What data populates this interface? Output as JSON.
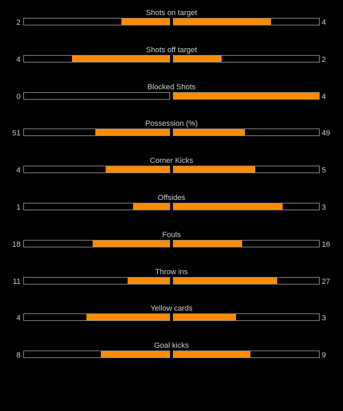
{
  "colors": {
    "background": "#000000",
    "fill": "#ff8c00",
    "border": "#8a8a8a",
    "text": "#d0d0d0"
  },
  "stats": [
    {
      "label": "Shots on target",
      "home": "2",
      "away": "4",
      "home_fill": 0.33,
      "away_fill": 0.67
    },
    {
      "label": "Shots off target",
      "home": "4",
      "away": "2",
      "home_fill": 0.67,
      "away_fill": 0.33
    },
    {
      "label": "Blocked Shots",
      "home": "0",
      "away": "4",
      "home_fill": 0.0,
      "away_fill": 1.0
    },
    {
      "label": "Possession (%)",
      "home": "51",
      "away": "49",
      "home_fill": 0.51,
      "away_fill": 0.49
    },
    {
      "label": "Corner Kicks",
      "home": "4",
      "away": "5",
      "home_fill": 0.44,
      "away_fill": 0.56
    },
    {
      "label": "Offsides",
      "home": "1",
      "away": "3",
      "home_fill": 0.25,
      "away_fill": 0.75
    },
    {
      "label": "Fouls",
      "home": "18",
      "away": "16",
      "home_fill": 0.53,
      "away_fill": 0.47
    },
    {
      "label": "Throw ins",
      "home": "11",
      "away": "27",
      "home_fill": 0.29,
      "away_fill": 0.71
    },
    {
      "label": "Yellow cards",
      "home": "4",
      "away": "3",
      "home_fill": 0.57,
      "away_fill": 0.43
    },
    {
      "label": "Goal kicks",
      "home": "8",
      "away": "9",
      "home_fill": 0.47,
      "away_fill": 0.53
    }
  ]
}
